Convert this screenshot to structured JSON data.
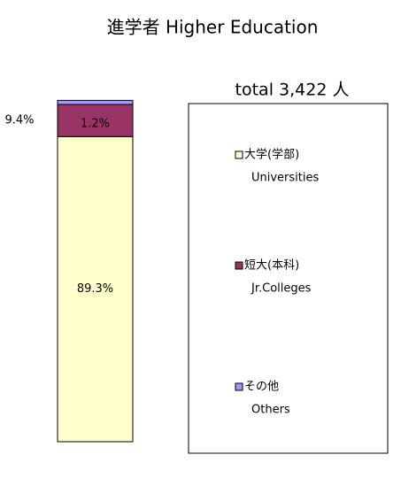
{
  "chart_data": {
    "type": "stacked_bar",
    "title": "進学者 Higher Education",
    "subtitle": "total 3,422 人",
    "ylim": [
      0,
      100
    ],
    "series": [
      {
        "name": "大学(学部)",
        "name_en": "Universities",
        "color": "#ffffcc",
        "values": [
          89.3
        ],
        "value_labels": [
          "89.3%"
        ]
      },
      {
        "name": "短大(本科)",
        "name_en": "Jr.Colleges",
        "color": "#993366",
        "values": [
          9.4
        ],
        "value_labels": [
          "9.4%"
        ]
      },
      {
        "name": "その他",
        "name_en": "Others",
        "color": "#9999ff",
        "values": [
          1.2
        ],
        "value_labels": [
          "1.2%"
        ]
      }
    ]
  }
}
